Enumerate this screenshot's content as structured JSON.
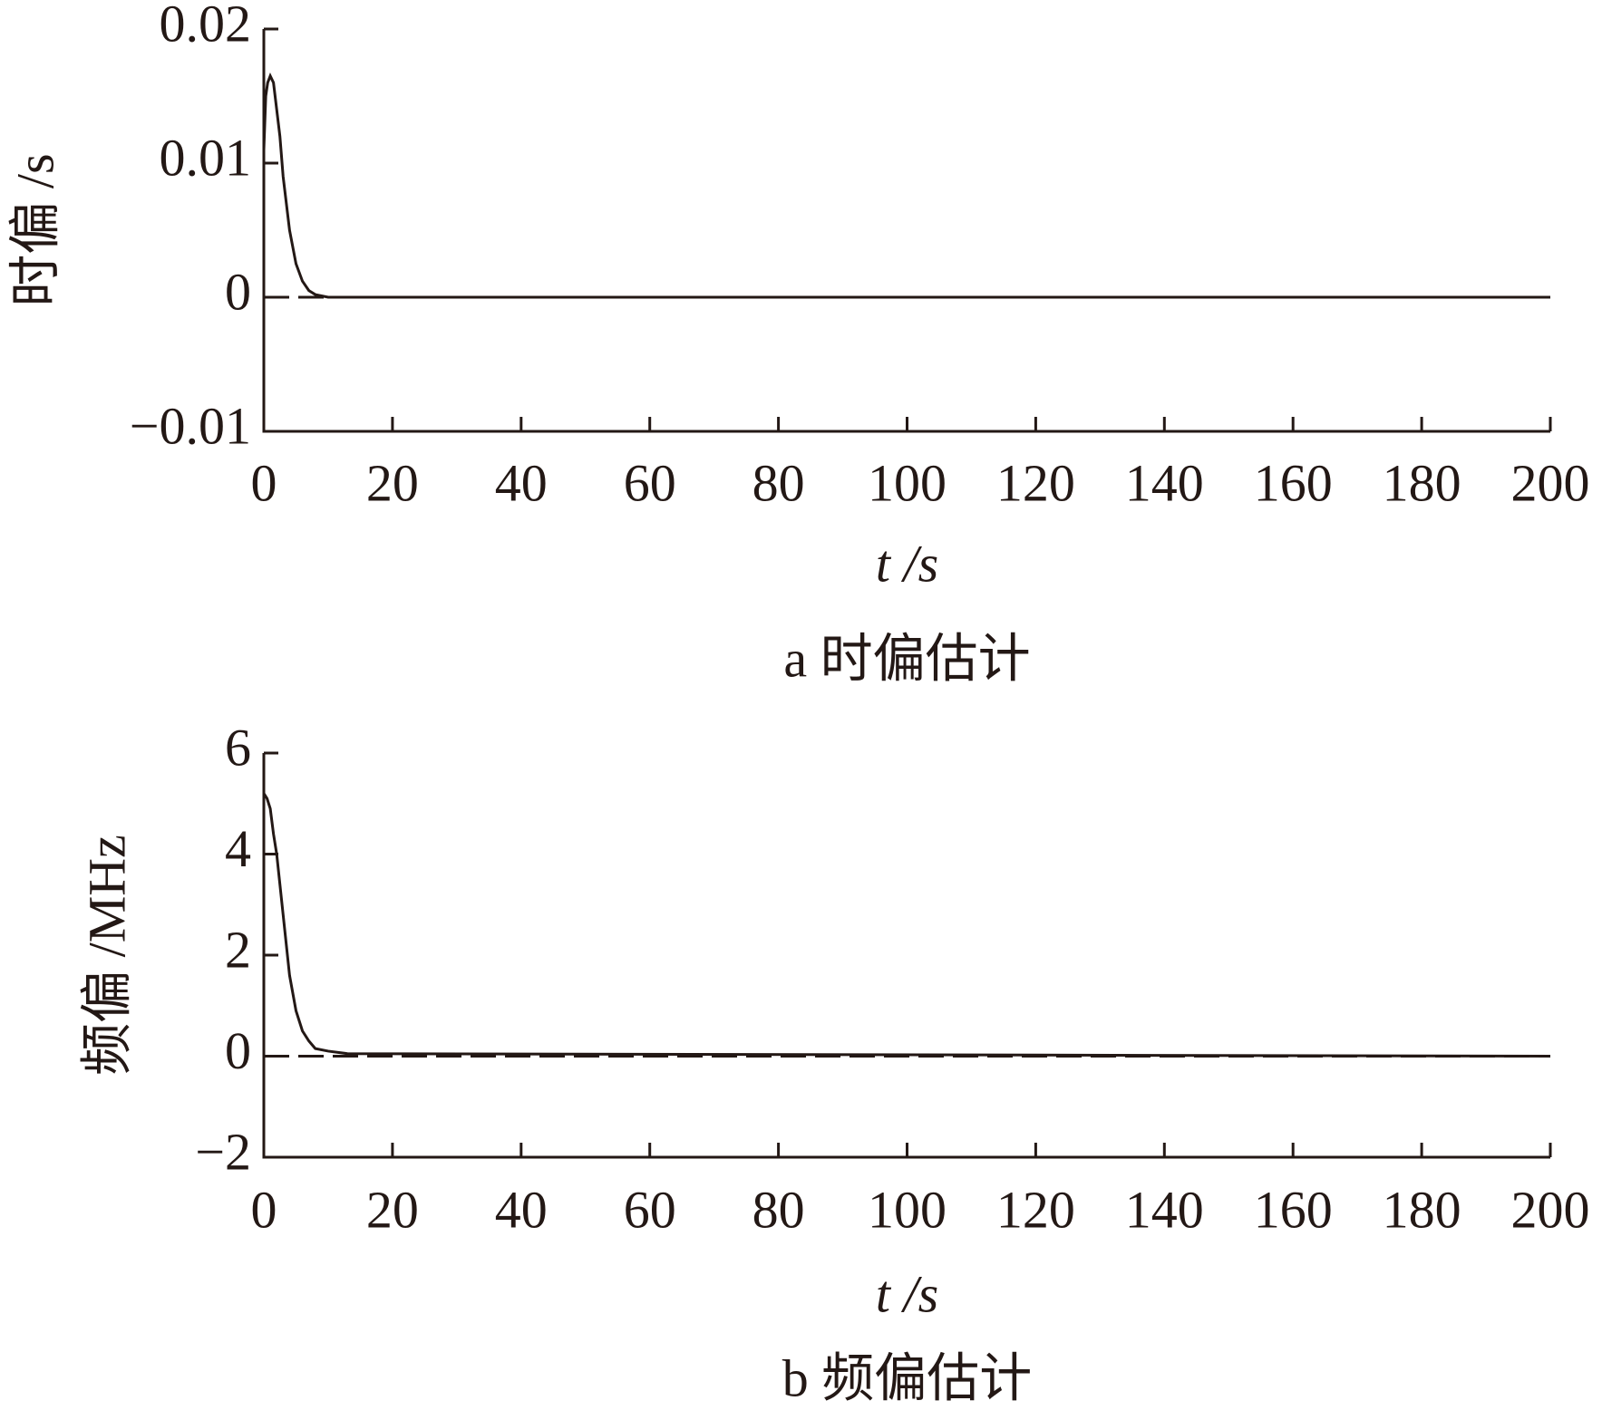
{
  "chart_data": [
    {
      "type": "line",
      "y_label": "时偏 /s",
      "x_label": "t /s",
      "caption": "a 时偏估计",
      "xlim": [
        0,
        200
      ],
      "xticks": [
        0,
        20,
        40,
        60,
        80,
        100,
        120,
        140,
        160,
        180,
        200
      ],
      "ylim": [
        -0.01,
        0.02
      ],
      "yticks": [
        {
          "value": -0.01,
          "label": "−0.01"
        },
        0,
        0.01,
        0.02
      ],
      "series": [
        {
          "color": "#231815",
          "dash": true,
          "x": [
            0,
            200
          ],
          "values": [
            0,
            0
          ]
        },
        {
          "color": "#231815",
          "dash": false,
          "x": [
            0,
            0.3,
            0.6,
            1,
            1.5,
            2,
            2.5,
            3,
            4,
            5,
            6,
            7,
            8,
            10,
            12,
            200
          ],
          "values": [
            0.011,
            0.015,
            0.016,
            0.0165,
            0.016,
            0.014,
            0.012,
            0.009,
            0.005,
            0.0025,
            0.0012,
            0.0005,
            0.0002,
            0,
            0,
            0
          ]
        }
      ]
    },
    {
      "type": "line",
      "y_label": "频偏 /MHz",
      "x_label": "t /s",
      "caption": "b 频偏估计",
      "xlim": [
        0,
        200
      ],
      "xticks": [
        0,
        20,
        40,
        60,
        80,
        100,
        120,
        140,
        160,
        180,
        200
      ],
      "ylim": [
        -2,
        6
      ],
      "yticks": [
        {
          "value": -2,
          "label": "−2"
        },
        0,
        2,
        4,
        6
      ],
      "series": [
        {
          "color": "#231815",
          "dash": true,
          "x": [
            0,
            200
          ],
          "values": [
            0,
            0
          ]
        },
        {
          "color": "#231815",
          "dash": false,
          "x": [
            0,
            0.5,
            1,
            1.5,
            2,
            3,
            4,
            5,
            6,
            7,
            8,
            10,
            13,
            200
          ],
          "values": [
            5.2,
            5.1,
            4.9,
            4.4,
            4.0,
            2.8,
            1.6,
            0.9,
            0.5,
            0.3,
            0.15,
            0.1,
            0.05,
            0
          ]
        }
      ]
    }
  ]
}
